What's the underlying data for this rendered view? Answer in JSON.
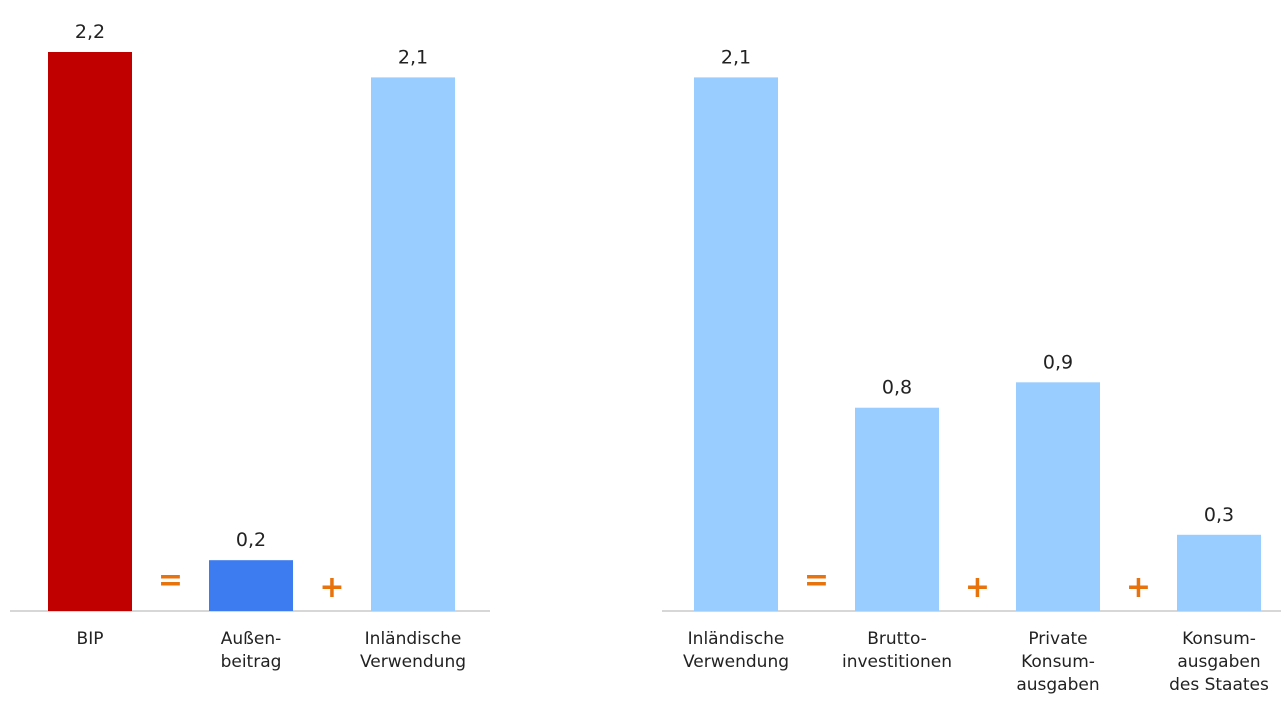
{
  "colors": {
    "bip": "#c00000",
    "aussenbeitrag": "#3c7cf0",
    "inland": "#99ccff",
    "operator": "#e8720c",
    "axis": "#bfbfbf"
  },
  "chart_data": [
    {
      "type": "bar",
      "categories": [
        "BIP",
        "Außen-\nbeitrag",
        "Inländische\nVerwendung"
      ],
      "values": [
        2.2,
        0.2,
        2.1
      ],
      "value_labels": [
        "2,2",
        "0,2",
        "2,1"
      ],
      "bar_colors": [
        "#c00000",
        "#3c7cf0",
        "#99ccff"
      ],
      "operators": [
        "=",
        "+"
      ],
      "ylim": [
        0,
        2.2
      ]
    },
    {
      "type": "bar",
      "categories": [
        "Inländische\nVerwendung",
        "Brutto-\ninvestitionen",
        "Private\nKonsum-\nausgaben",
        "Konsum-\nausgaben\ndes Staates"
      ],
      "values": [
        2.1,
        0.8,
        0.9,
        0.3
      ],
      "value_labels": [
        "2,1",
        "0,8",
        "0,9",
        "0,3"
      ],
      "bar_colors": [
        "#99ccff",
        "#99ccff",
        "#99ccff",
        "#99ccff"
      ],
      "operators": [
        "=",
        "+",
        "+"
      ],
      "ylim": [
        0,
        2.2
      ]
    }
  ]
}
